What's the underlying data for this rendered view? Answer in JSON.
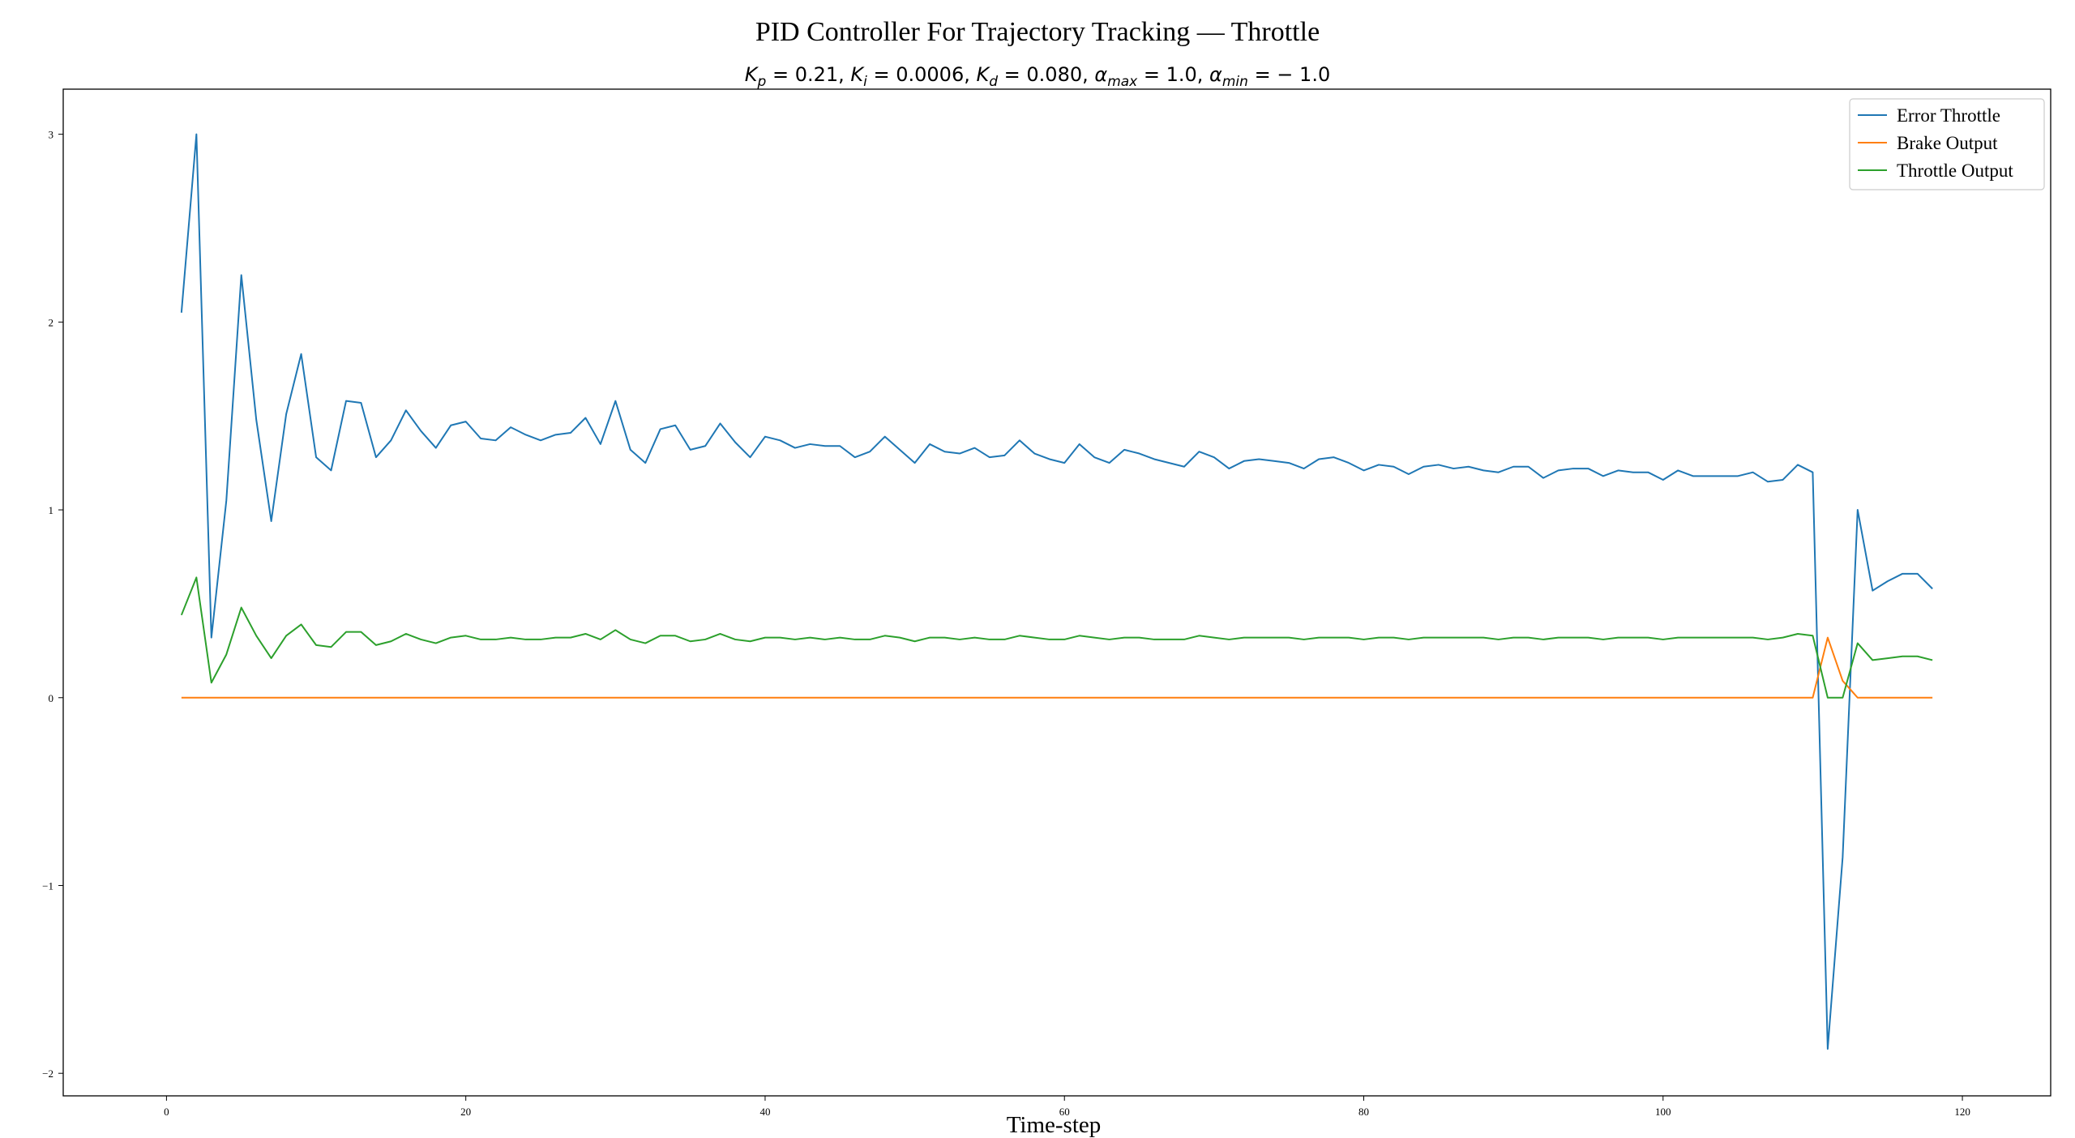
{
  "chart_data": {
    "type": "line",
    "title": "PID Controller For Trajectory Tracking — Throttle",
    "subtitle": {
      "parts": [
        {
          "sym": "K",
          "sub": "p",
          "val": "0.21"
        },
        {
          "sym": "K",
          "sub": "i",
          "val": "0.0006"
        },
        {
          "sym": "K",
          "sub": "d",
          "val": "0.080"
        },
        {
          "sym": "α",
          "sub": "max",
          "val": "1.0"
        },
        {
          "sym": "α",
          "sub": "min",
          "val": "− 1.0"
        }
      ]
    },
    "xlabel": "Time-step",
    "ylabel": "",
    "xlim": [
      -6.9,
      125.9
    ],
    "ylim": [
      -2.12,
      3.24
    ],
    "xticks": [
      0,
      20,
      40,
      60,
      80,
      100,
      120
    ],
    "yticks": [
      -2,
      -1,
      0,
      1,
      2,
      3
    ],
    "grid": false,
    "legend_position": "top-right",
    "series": [
      {
        "name": "Error Throttle",
        "color": "#1f77b4",
        "values": [
          2.05,
          3.0,
          0.32,
          1.05,
          2.25,
          1.48,
          0.94,
          1.51,
          1.83,
          1.28,
          1.21,
          1.58,
          1.57,
          1.28,
          1.37,
          1.53,
          1.42,
          1.33,
          1.45,
          1.47,
          1.38,
          1.37,
          1.44,
          1.4,
          1.37,
          1.4,
          1.41,
          1.49,
          1.35,
          1.58,
          1.32,
          1.25,
          1.43,
          1.45,
          1.32,
          1.34,
          1.46,
          1.36,
          1.28,
          1.39,
          1.37,
          1.33,
          1.35,
          1.34,
          1.34,
          1.28,
          1.31,
          1.39,
          1.32,
          1.25,
          1.35,
          1.31,
          1.3,
          1.33,
          1.28,
          1.29,
          1.37,
          1.3,
          1.27,
          1.25,
          1.35,
          1.28,
          1.25,
          1.32,
          1.3,
          1.27,
          1.25,
          1.23,
          1.31,
          1.28,
          1.22,
          1.26,
          1.27,
          1.26,
          1.25,
          1.22,
          1.27,
          1.28,
          1.25,
          1.21,
          1.24,
          1.23,
          1.19,
          1.23,
          1.24,
          1.22,
          1.23,
          1.21,
          1.2,
          1.23,
          1.23,
          1.17,
          1.21,
          1.22,
          1.22,
          1.18,
          1.21,
          1.2,
          1.2,
          1.16,
          1.21,
          1.18,
          1.18,
          1.18,
          1.18,
          1.2,
          1.15,
          1.16,
          1.24,
          1.2,
          -1.87,
          -0.85,
          1.0,
          0.57,
          0.62,
          0.66,
          0.66,
          0.58
        ]
      },
      {
        "name": "Brake Output",
        "color": "#ff7f0e",
        "values": [
          0,
          0,
          0,
          0,
          0,
          0,
          0,
          0,
          0,
          0,
          0,
          0,
          0,
          0,
          0,
          0,
          0,
          0,
          0,
          0,
          0,
          0,
          0,
          0,
          0,
          0,
          0,
          0,
          0,
          0,
          0,
          0,
          0,
          0,
          0,
          0,
          0,
          0,
          0,
          0,
          0,
          0,
          0,
          0,
          0,
          0,
          0,
          0,
          0,
          0,
          0,
          0,
          0,
          0,
          0,
          0,
          0,
          0,
          0,
          0,
          0,
          0,
          0,
          0,
          0,
          0,
          0,
          0,
          0,
          0,
          0,
          0,
          0,
          0,
          0,
          0,
          0,
          0,
          0,
          0,
          0,
          0,
          0,
          0,
          0,
          0,
          0,
          0,
          0,
          0,
          0,
          0,
          0,
          0,
          0,
          0,
          0,
          0,
          0,
          0,
          0,
          0,
          0,
          0,
          0,
          0,
          0,
          0,
          0,
          0,
          0.32,
          0.09,
          0,
          0,
          0,
          0,
          0,
          0
        ]
      },
      {
        "name": "Throttle Output",
        "color": "#2ca02c",
        "values": [
          0.44,
          0.64,
          0.08,
          0.23,
          0.48,
          0.33,
          0.21,
          0.33,
          0.39,
          0.28,
          0.27,
          0.35,
          0.35,
          0.28,
          0.3,
          0.34,
          0.31,
          0.29,
          0.32,
          0.33,
          0.31,
          0.31,
          0.32,
          0.31,
          0.31,
          0.32,
          0.32,
          0.34,
          0.31,
          0.36,
          0.31,
          0.29,
          0.33,
          0.33,
          0.3,
          0.31,
          0.34,
          0.31,
          0.3,
          0.32,
          0.32,
          0.31,
          0.32,
          0.31,
          0.32,
          0.31,
          0.31,
          0.33,
          0.32,
          0.3,
          0.32,
          0.32,
          0.31,
          0.32,
          0.31,
          0.31,
          0.33,
          0.32,
          0.31,
          0.31,
          0.33,
          0.32,
          0.31,
          0.32,
          0.32,
          0.31,
          0.31,
          0.31,
          0.33,
          0.32,
          0.31,
          0.32,
          0.32,
          0.32,
          0.32,
          0.31,
          0.32,
          0.32,
          0.32,
          0.31,
          0.32,
          0.32,
          0.31,
          0.32,
          0.32,
          0.32,
          0.32,
          0.32,
          0.31,
          0.32,
          0.32,
          0.31,
          0.32,
          0.32,
          0.32,
          0.31,
          0.32,
          0.32,
          0.32,
          0.31,
          0.32,
          0.32,
          0.32,
          0.32,
          0.32,
          0.32,
          0.31,
          0.32,
          0.34,
          0.33,
          0.0,
          0.0,
          0.29,
          0.2,
          0.21,
          0.22,
          0.22,
          0.2
        ]
      }
    ]
  }
}
